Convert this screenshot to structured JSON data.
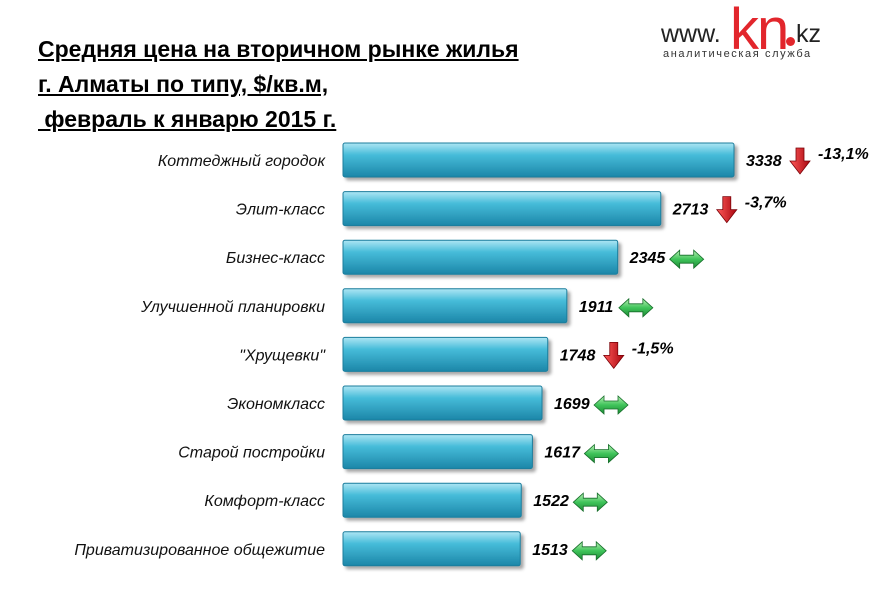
{
  "colors": {
    "bar": "#3fb3d1",
    "bar_dark": "#1b7d9c",
    "down": "#d0141c",
    "flat": "#2fae4c"
  },
  "logo": {
    "www": "www.",
    "kn": "kn",
    "kz": "kz",
    "subtitle": "аналитическая служба"
  },
  "chart_data": {
    "type": "bar",
    "orientation": "horizontal",
    "title": [
      "Средняя цена на вторичном рынке жилья",
      "г. Алматы по типу, $/кв.м,",
      " февраль к январю 2015 г."
    ],
    "categories": [
      "Коттеджный городок",
      "Элит-класс",
      "Бизнес-класс",
      "Улучшенной планировки",
      "\"Хрущевки\"",
      "Экономкласс",
      "Старой постройки",
      "Комфорт-класс",
      "Приватизированное общежитие"
    ],
    "values": [
      3338,
      2713,
      2345,
      1911,
      1748,
      1699,
      1617,
      1522,
      1513
    ],
    "change": [
      {
        "trend": "down",
        "label": "-13,1%"
      },
      {
        "trend": "down",
        "label": "-3,7%"
      },
      {
        "trend": "flat",
        "label": ""
      },
      {
        "trend": "flat",
        "label": ""
      },
      {
        "trend": "down",
        "label": "-1,5%"
      },
      {
        "trend": "flat",
        "label": ""
      },
      {
        "trend": "flat",
        "label": ""
      },
      {
        "trend": "flat",
        "label": ""
      },
      {
        "trend": "flat",
        "label": ""
      }
    ],
    "xlim": [
      0,
      3338
    ],
    "grid": false,
    "legend": "none"
  }
}
